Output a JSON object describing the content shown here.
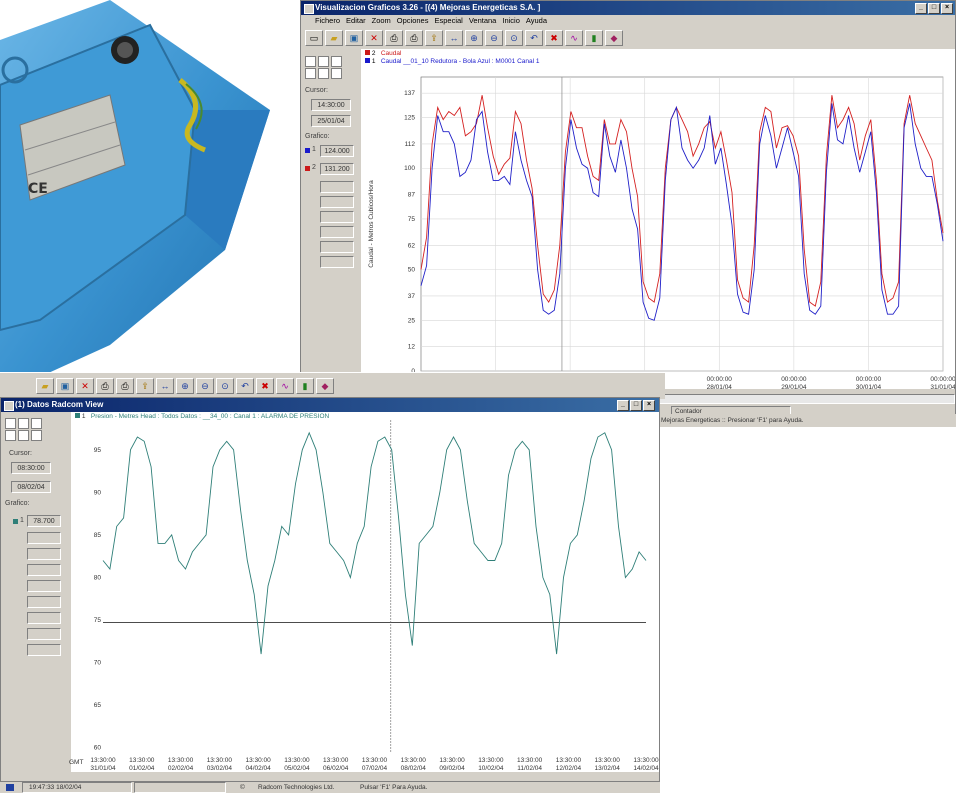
{
  "window1": {
    "title": "Visualizacion Graficos 3.26 - [(4) Mejoras Energeticas S.A. ]",
    "menu": [
      "Fichero",
      "Editar",
      "Zoom",
      "Opciones",
      "Especial",
      "Ventana",
      "Inicio",
      "Ayuda"
    ],
    "cursor_label": "Cursor:",
    "cursor_time": "14:30:00",
    "cursor_date": "25/01/04",
    "grafico_label": "Grafico:",
    "values": [
      {
        "n": "1",
        "v": "124.000",
        "color": "#1a1acc"
      },
      {
        "n": "2",
        "v": "131.200",
        "color": "#cc1a1a"
      }
    ],
    "legend": [
      {
        "n": "2",
        "text": "Caudal",
        "color": "#cc1a1a"
      },
      {
        "n": "1",
        "text": "Caudal    __01_10   Redutora - Bola Azul  : M0001 Canal 1",
        "color": "#1a1acc"
      }
    ],
    "ylabel": "Caudal - Metros Cubicos/Hora",
    "status_left": "Contador",
    "status_mid": "Mejoras Energeticas",
    "status_right": "Presionar 'F1' para Ayuda."
  },
  "window2": {
    "title": "(1) Datos Radcom View",
    "legend": "Presion - Metres Head : Todos Datos :  __34_00  : Canal 1 : ALARMA DE PRESION",
    "legend_n": "1",
    "cursor_label": "Cursor:",
    "cursor_time": "08:30:00",
    "cursor_date": "08/02/04",
    "grafico_label": "Grafico:",
    "value": "78.700",
    "value_n": "1",
    "gmt": "GMT",
    "status_time": "19:47:33   18/02/04",
    "status_copy": "Radcom Technologies Ltd.",
    "status_copy_sym": "©",
    "status_help": "Pulsar 'F1' Para Ayuda."
  },
  "colors": {
    "red": "#d42020",
    "blue": "#2020c8",
    "teal": "#2f7f78",
    "titlebar": "#0a246a"
  },
  "icons": [
    "new-icon",
    "open-icon",
    "save-icon",
    "delete-icon",
    "print-icon",
    "print-preview-icon",
    "export-icon",
    "fit-icon",
    "zoom-in-icon",
    "zoom-out-icon",
    "zoom-window-icon",
    "zoom-prev-icon",
    "zoom-cancel-icon",
    "chart-icon",
    "bars-icon",
    "book-icon"
  ],
  "chart_data": [
    {
      "type": "line",
      "ylabel": "Caudal - Metros Cubicos/Hora",
      "yticks": [
        0,
        12,
        25,
        37,
        50,
        62,
        75,
        87,
        100,
        112,
        125,
        137
      ],
      "ylim": [
        0,
        145
      ],
      "xticks": [
        {
          "t": "00:00:00",
          "d": ""
        },
        {
          "t": "00:00:00",
          "d": ""
        },
        {
          "t": "00:00:00",
          "d": ""
        },
        {
          "t": "00:00:00",
          "d": "28/01/04"
        },
        {
          "t": "00:00:00",
          "d": "29/01/04"
        },
        {
          "t": "00:00:00",
          "d": "30/01/04"
        },
        {
          "t": "00:00:00",
          "d": "31/01/04"
        }
      ],
      "series": [
        {
          "values": [
            50,
            66,
            112,
            130,
            124,
            128,
            126,
            130,
            116,
            118,
            122,
            136,
            120,
            106,
            97,
            102,
            105,
            128,
            122,
            104,
            90,
            62,
            38,
            34,
            40,
            62,
            108,
            128,
            120,
            120,
            106,
            96,
            94,
            124,
            112,
            112,
            124,
            118,
            100,
            86,
            44,
            36,
            34,
            48,
            100,
            124,
            130,
            124,
            118,
            106,
            112,
            120,
            123,
            110,
            118,
            104,
            88,
            45,
            36,
            34,
            62,
            118,
            130,
            128,
            110,
            120,
            121,
            116,
            106,
            60,
            34,
            32,
            44,
            106,
            136,
            120,
            124,
            130,
            122,
            104,
            116,
            124,
            94,
            48,
            34,
            36,
            44,
            122,
            136,
            122,
            116,
            110,
            104,
            84,
            68
          ]
        },
        {
          "values": [
            42,
            52,
            100,
            126,
            118,
            118,
            112,
            96,
            98,
            104,
            124,
            128,
            108,
            94,
            94,
            96,
            92,
            118,
            104,
            94,
            86,
            50,
            30,
            28,
            30,
            48,
            100,
            124,
            110,
            102,
            100,
            88,
            86,
            122,
            106,
            98,
            114,
            100,
            80,
            70,
            34,
            26,
            25,
            36,
            94,
            124,
            130,
            110,
            104,
            100,
            104,
            110,
            126,
            102,
            110,
            92,
            72,
            38,
            29,
            28,
            50,
            112,
            126,
            116,
            100,
            110,
            120,
            108,
            96,
            48,
            30,
            28,
            32,
            98,
            132,
            114,
            112,
            126,
            110,
            98,
            108,
            118,
            88,
            40,
            28,
            28,
            32,
            120,
            132,
            112,
            100,
            96,
            96,
            82,
            64
          ]
        }
      ]
    },
    {
      "type": "line",
      "ylabel": "",
      "yticks": [
        60,
        65,
        70,
        75,
        80,
        85,
        90,
        95
      ],
      "ylim": [
        59.5,
        98.5
      ],
      "threshold": 74.7,
      "xticks": [
        {
          "t": "13:30:00",
          "d": "31/01/04"
        },
        {
          "t": "13:30:00",
          "d": "01/02/04"
        },
        {
          "t": "13:30:00",
          "d": "02/02/04"
        },
        {
          "t": "13:30:00",
          "d": "03/02/04"
        },
        {
          "t": "13:30:00",
          "d": "04/02/04"
        },
        {
          "t": "13:30:00",
          "d": "05/02/04"
        },
        {
          "t": "13:30:00",
          "d": "06/02/04"
        },
        {
          "t": "13:30:00",
          "d": "07/02/04"
        },
        {
          "t": "13:30:00",
          "d": "08/02/04"
        },
        {
          "t": "13:30:00",
          "d": "09/02/04"
        },
        {
          "t": "13:30:00",
          "d": "10/02/04"
        },
        {
          "t": "13:30:00",
          "d": "11/02/04"
        },
        {
          "t": "13:30:00",
          "d": "12/02/04"
        },
        {
          "t": "13:30:00",
          "d": "13/02/04"
        },
        {
          "t": "13:30:00",
          "d": "14/02/04"
        }
      ],
      "series": [
        {
          "values": [
            82,
            81,
            86,
            87,
            95,
            96.5,
            96,
            93,
            84,
            84,
            85,
            82,
            81,
            83,
            84,
            85,
            93,
            95,
            96,
            95,
            88,
            82,
            78,
            71,
            79,
            82,
            86,
            85,
            91,
            95,
            97,
            95,
            90,
            84,
            83,
            82,
            80,
            84,
            86,
            93,
            96,
            96.5,
            95,
            87,
            78,
            72,
            84,
            85,
            86,
            90,
            95,
            96.5,
            95,
            89,
            84,
            83,
            82,
            82,
            84,
            92,
            95,
            96,
            95,
            86,
            80,
            78,
            71,
            80,
            84,
            85,
            89,
            94,
            96.5,
            97,
            95,
            86,
            80,
            81,
            83,
            82
          ]
        }
      ]
    }
  ]
}
